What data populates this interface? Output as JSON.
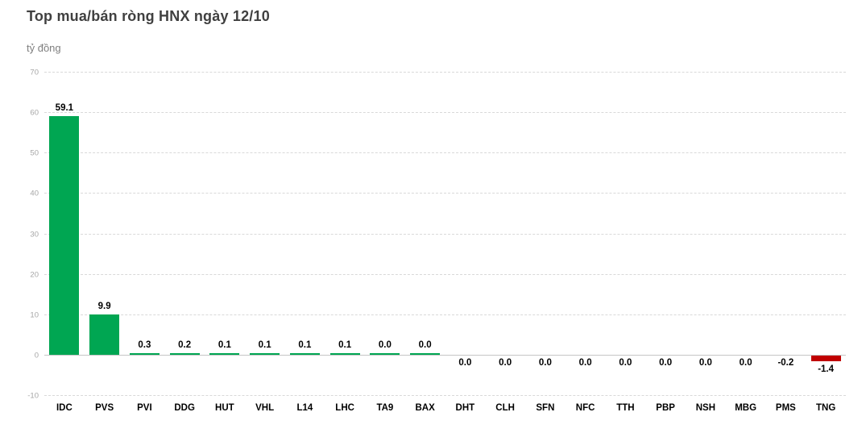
{
  "title": "Top mua/bán ròng HNX ngày 12/10",
  "unit_label": "tỷ đồng",
  "colors": {
    "positive_bar": "#00a652",
    "negative_bar": "#c00000",
    "gridline": "#d9d9d9",
    "zero_line": "#c6c6c6",
    "title_text": "#404040",
    "unit_text": "#7f7f7f",
    "tick_text": "#a6a6a6",
    "label_text": "#000000"
  },
  "chart_data": {
    "type": "bar",
    "title": "Top mua/bán ròng HNX ngày 12/10",
    "ylabel": "tỷ đồng",
    "xlabel": "",
    "categories": [
      "IDC",
      "PVS",
      "PVI",
      "DDG",
      "HUT",
      "VHL",
      "L14",
      "LHC",
      "TA9",
      "BAX",
      "DHT",
      "CLH",
      "SFN",
      "NFC",
      "TTH",
      "PBP",
      "NSH",
      "MBG",
      "PMS",
      "TNG"
    ],
    "values": [
      59.1,
      9.9,
      0.3,
      0.2,
      0.1,
      0.1,
      0.1,
      0.1,
      0.0,
      0.0,
      0.0,
      0.0,
      0.0,
      0.0,
      0.0,
      0.0,
      0.0,
      0.0,
      -0.2,
      -1.4
    ],
    "value_labels": [
      "59.1",
      "9.9",
      "0.3",
      "0.2",
      "0.1",
      "0.1",
      "0.1",
      "0.1",
      "0.0",
      "0.0",
      "0.0",
      "0.0",
      "0.0",
      "0.0",
      "0.0",
      "0.0",
      "0.0",
      "0.0",
      "-0.2",
      "-1.4"
    ],
    "sides": [
      "buy",
      "buy",
      "buy",
      "buy",
      "buy",
      "buy",
      "buy",
      "buy",
      "buy",
      "buy",
      "sell",
      "sell",
      "sell",
      "sell",
      "sell",
      "sell",
      "sell",
      "sell",
      "sell",
      "sell"
    ],
    "ylim": [
      -10,
      70
    ],
    "y_ticks": [
      70,
      60,
      50,
      40,
      30,
      20,
      10,
      0,
      -10
    ],
    "grid": "horizontal-dashed",
    "legend": "none"
  }
}
